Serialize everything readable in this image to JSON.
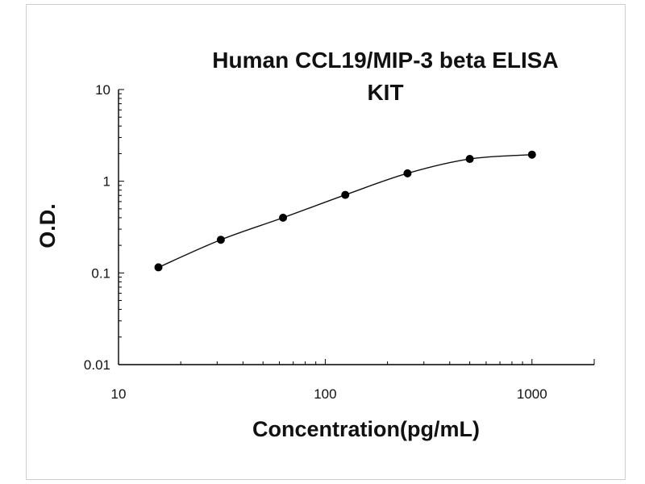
{
  "chart_data": {
    "type": "line",
    "title_lines": [
      "Human CCL19/MIP-3 beta ELISA",
      "KIT"
    ],
    "xlabel": "Concentration(pg/mL)",
    "ylabel": "O.D.",
    "x_scale": "log",
    "y_scale": "log",
    "xlim": [
      10,
      2000
    ],
    "ylim": [
      0.01,
      10
    ],
    "x_ticks": [
      "10",
      "100",
      "1000"
    ],
    "y_ticks": [
      "0.01",
      "0.1",
      "1",
      "10"
    ],
    "grid": false,
    "legend": "none",
    "series": [
      {
        "x": [
          15.6,
          31.25,
          62.5,
          125,
          250,
          500,
          1000
        ],
        "y": [
          0.115,
          0.23,
          0.4,
          0.71,
          1.22,
          1.75,
          1.95
        ]
      }
    ]
  }
}
